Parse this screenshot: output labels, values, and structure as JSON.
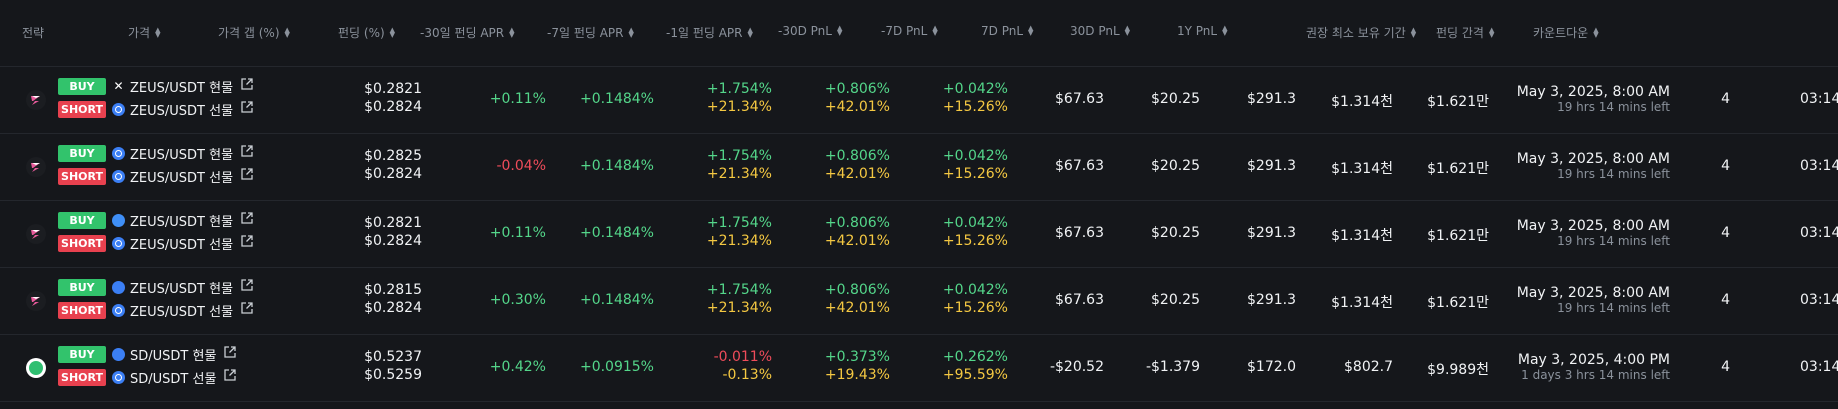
{
  "header": {
    "columns": [
      {
        "label": "전략",
        "sortable": false
      },
      {
        "label": "가격",
        "sortable": true
      },
      {
        "label": "가격 갭 (%)",
        "sortable": true
      },
      {
        "label": "펀딩 (%)",
        "sortable": true
      },
      {
        "label": "-30일 펀딩 APR",
        "sortable": true
      },
      {
        "label": "-7일 펀딩 APR",
        "sortable": true
      },
      {
        "label": "-1일 펀딩 APR",
        "sortable": true
      },
      {
        "label": "-30D PnL",
        "sortable": true
      },
      {
        "label": "-7D PnL",
        "sortable": true
      },
      {
        "label": "7D PnL",
        "sortable": true
      },
      {
        "label": "30D PnL",
        "sortable": true
      },
      {
        "label": "1Y PnL",
        "sortable": true
      },
      {
        "label": "권장 최소 보유 기간",
        "sortable": true
      },
      {
        "label": "펀딩 간격",
        "sortable": true
      },
      {
        "label": "카운트다운",
        "sortable": true
      }
    ]
  },
  "rows": [
    {
      "logo": "zeus-logo",
      "buy_label": "BUY",
      "buy_exchange_icon": "x-exchange-icon",
      "buy_pair": "ZEUS/USDT 현물",
      "short_label": "SHORT",
      "short_exchange_icon": "futures-exchange-icon",
      "short_pair": "ZEUS/USDT 선물",
      "price_top": "$0.2821",
      "price_bottom": "$0.2824",
      "gap": "+0.11%",
      "gap_color": "green",
      "funding": "+0.1484%",
      "funding_color": "green",
      "apr30_top": "+1.754%",
      "apr30_top_color": "green",
      "apr30_bottom": "+21.34%",
      "apr7_top": "+0.806%",
      "apr7_bottom": "+42.01%",
      "apr1_top": "+0.042%",
      "apr1_top_color": "green",
      "apr1_bottom": "+15.26%",
      "pnl_m30": "$67.63",
      "pnl_m7": "$20.25",
      "pnl_7": "$291.3",
      "pnl_30": "$1.314천",
      "pnl_1y": "$1.621만",
      "countdown_date": "May 3, 2025, 8:00 AM",
      "countdown_left": "19 hrs 14 mins left",
      "interval": "4",
      "countdown_clock": "03:14"
    },
    {
      "logo": "zeus-logo",
      "buy_label": "BUY",
      "buy_exchange_icon": "futures-exchange-icon",
      "buy_pair": "ZEUS/USDT 현물",
      "short_label": "SHORT",
      "short_exchange_icon": "futures-exchange-icon",
      "short_pair": "ZEUS/USDT 선물",
      "price_top": "$0.2825",
      "price_bottom": "$0.2824",
      "gap": "-0.04%",
      "gap_color": "red",
      "funding": "+0.1484%",
      "funding_color": "green",
      "apr30_top": "+1.754%",
      "apr30_top_color": "green",
      "apr30_bottom": "+21.34%",
      "apr7_top": "+0.806%",
      "apr7_bottom": "+42.01%",
      "apr1_top": "+0.042%",
      "apr1_top_color": "green",
      "apr1_bottom": "+15.26%",
      "pnl_m30": "$67.63",
      "pnl_m7": "$20.25",
      "pnl_7": "$291.3",
      "pnl_30": "$1.314천",
      "pnl_1y": "$1.621만",
      "countdown_date": "May 3, 2025, 8:00 AM",
      "countdown_left": "19 hrs 14 mins left",
      "interval": "4",
      "countdown_clock": "03:14"
    },
    {
      "logo": "zeus-logo",
      "buy_label": "BUY",
      "buy_exchange_icon": "cloud-exchange-icon",
      "buy_pair": "ZEUS/USDT 현물",
      "short_label": "SHORT",
      "short_exchange_icon": "futures-exchange-icon",
      "short_pair": "ZEUS/USDT 선물",
      "price_top": "$0.2821",
      "price_bottom": "$0.2824",
      "gap": "+0.11%",
      "gap_color": "green",
      "funding": "+0.1484%",
      "funding_color": "green",
      "apr30_top": "+1.754%",
      "apr30_top_color": "green",
      "apr30_bottom": "+21.34%",
      "apr7_top": "+0.806%",
      "apr7_bottom": "+42.01%",
      "apr1_top": "+0.042%",
      "apr1_top_color": "green",
      "apr1_bottom": "+15.26%",
      "pnl_m30": "$67.63",
      "pnl_m7": "$20.25",
      "pnl_7": "$291.3",
      "pnl_30": "$1.314천",
      "pnl_1y": "$1.621만",
      "countdown_date": "May 3, 2025, 8:00 AM",
      "countdown_left": "19 hrs 14 mins left",
      "interval": "4",
      "countdown_clock": "03:14"
    },
    {
      "logo": "zeus-logo",
      "buy_label": "BUY",
      "buy_exchange_icon": "drop-exchange-icon",
      "buy_pair": "ZEUS/USDT 현물",
      "short_label": "SHORT",
      "short_exchange_icon": "futures-exchange-icon",
      "short_pair": "ZEUS/USDT 선물",
      "price_top": "$0.2815",
      "price_bottom": "$0.2824",
      "gap": "+0.30%",
      "gap_color": "green",
      "funding": "+0.1484%",
      "funding_color": "green",
      "apr30_top": "+1.754%",
      "apr30_top_color": "green",
      "apr30_bottom": "+21.34%",
      "apr7_top": "+0.806%",
      "apr7_bottom": "+42.01%",
      "apr1_top": "+0.042%",
      "apr1_top_color": "green",
      "apr1_bottom": "+15.26%",
      "pnl_m30": "$67.63",
      "pnl_m7": "$20.25",
      "pnl_7": "$291.3",
      "pnl_30": "$1.314천",
      "pnl_1y": "$1.621만",
      "countdown_date": "May 3, 2025, 8:00 AM",
      "countdown_left": "19 hrs 14 mins left",
      "interval": "4",
      "countdown_clock": "03:14"
    },
    {
      "logo": "sd-logo",
      "buy_label": "BUY",
      "buy_exchange_icon": "drop-exchange-icon",
      "buy_pair": "SD/USDT 현물",
      "short_label": "SHORT",
      "short_exchange_icon": "futures-exchange-icon",
      "short_pair": "SD/USDT 선물",
      "price_top": "$0.5237",
      "price_bottom": "$0.5259",
      "gap": "+0.42%",
      "gap_color": "green",
      "funding": "+0.0915%",
      "funding_color": "green",
      "apr30_top": "-0.011%",
      "apr30_top_color": "red",
      "apr30_bottom": "-0.13%",
      "apr7_top": "+0.373%",
      "apr7_bottom": "+19.43%",
      "apr1_top": "+0.262%",
      "apr1_top_color": "green",
      "apr1_bottom": "+95.59%",
      "pnl_m30": "-$20.52",
      "pnl_m7": "-$1.379",
      "pnl_7": "$172.0",
      "pnl_30": "$802.7",
      "pnl_1y": "$9.989천",
      "countdown_date": "May 3, 2025, 4:00 PM",
      "countdown_left": "1 days 3 hrs 14 mins left",
      "interval": "4",
      "countdown_clock": "03:14"
    }
  ],
  "colors": {
    "background": "#15171b",
    "buy": "#32c36c",
    "short": "#e8414f",
    "positive": "#54d68a",
    "negative": "#ef4c5a",
    "yellow": "#f4c842",
    "muted": "#8b929c"
  }
}
